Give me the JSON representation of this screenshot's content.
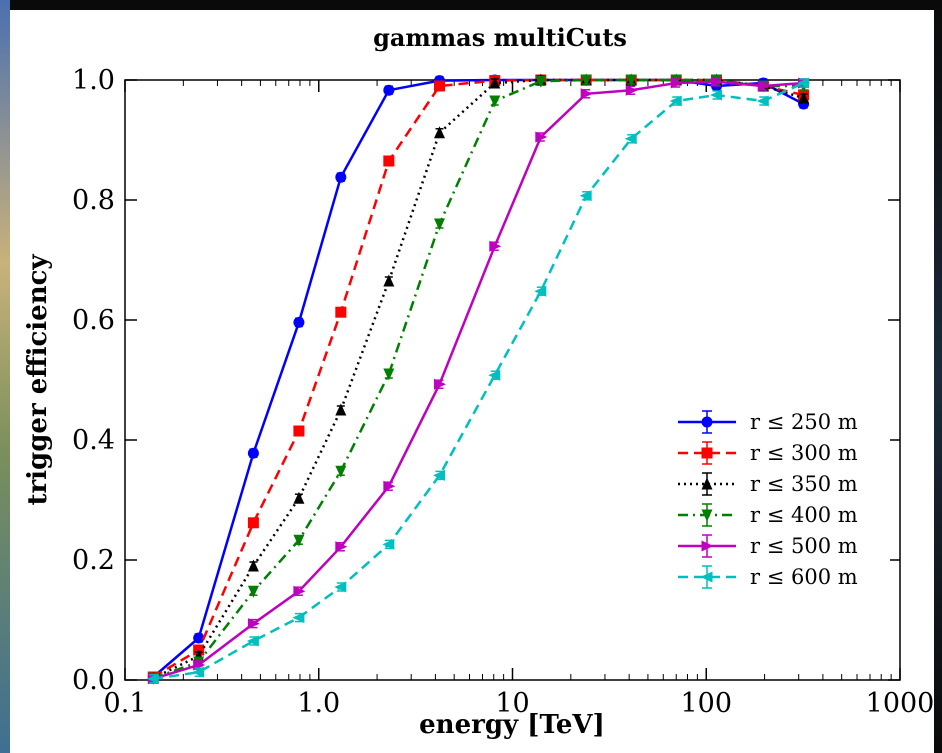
{
  "chart_data": {
    "type": "line",
    "title": "gammas multiCuts",
    "xlabel": "energy [TeV]",
    "ylabel": "trigger efficiency",
    "xscale": "log",
    "xlim": [
      0.1,
      1000
    ],
    "ylim": [
      0.0,
      1.0
    ],
    "x_tick_labels": [
      "0.1",
      "1.0",
      "10",
      "100",
      "1000"
    ],
    "y_tick_labels": [
      "0.0",
      "0.2",
      "0.4",
      "0.6",
      "0.8",
      "1.0"
    ],
    "y_ticks": [
      0.0,
      0.2,
      0.4,
      0.6,
      0.8,
      1.0
    ],
    "x_ticks": [
      0.1,
      1,
      10,
      100,
      1000
    ],
    "grid": false,
    "legend_position": "bottom-right",
    "series": [
      {
        "name": "r ≤ 250 m",
        "color": "#0000ff",
        "line": "solid",
        "marker": "circle",
        "x": [
          0.14,
          0.24,
          0.46,
          0.79,
          1.3,
          2.3,
          4.2,
          8.1,
          14,
          24,
          41,
          70,
          113,
          197,
          318
        ],
        "y": [
          0.005,
          0.07,
          0.378,
          0.596,
          0.838,
          0.983,
          0.999,
          1.0,
          1.0,
          1.0,
          1.0,
          1.0,
          0.99,
          0.995,
          0.96
        ]
      },
      {
        "name": "r ≤ 300 m",
        "color": "#ff0000",
        "line": "dashed",
        "marker": "square",
        "x": [
          0.14,
          0.24,
          0.46,
          0.79,
          1.3,
          2.3,
          4.2,
          8.1,
          14,
          24,
          41,
          70,
          113,
          197,
          318
        ],
        "y": [
          0.005,
          0.05,
          0.262,
          0.415,
          0.613,
          0.865,
          0.99,
          0.999,
          1.0,
          1.0,
          1.0,
          1.0,
          1.0,
          0.99,
          0.975
        ]
      },
      {
        "name": "r ≤ 350 m",
        "color": "#000000",
        "line": "dotted",
        "marker": "triangle-up",
        "x": [
          0.14,
          0.24,
          0.46,
          0.79,
          1.3,
          2.3,
          4.2,
          8.1,
          14,
          24,
          41,
          70,
          113,
          197,
          318
        ],
        "y": [
          0.003,
          0.04,
          0.19,
          0.303,
          0.45,
          0.665,
          0.912,
          0.995,
          1.0,
          1.0,
          1.0,
          1.0,
          1.0,
          0.99,
          0.97
        ]
      },
      {
        "name": "r ≤ 400 m",
        "color": "#007f00",
        "line": "dashdot",
        "marker": "triangle-down",
        "x": [
          0.14,
          0.24,
          0.46,
          0.79,
          1.3,
          2.3,
          4.2,
          8.1,
          14,
          24,
          41,
          70,
          113,
          197,
          318
        ],
        "y": [
          0.003,
          0.03,
          0.148,
          0.233,
          0.348,
          0.51,
          0.76,
          0.965,
          0.998,
          1.0,
          1.0,
          1.0,
          1.0,
          0.99,
          0.99
        ]
      },
      {
        "name": "r ≤ 500 m",
        "color": "#bf00bf",
        "line": "solid",
        "marker": "triangle-right",
        "x": [
          0.14,
          0.24,
          0.46,
          0.79,
          1.3,
          2.3,
          4.2,
          8.1,
          14,
          24,
          41,
          70,
          113,
          197,
          318
        ],
        "y": [
          0.002,
          0.025,
          0.094,
          0.148,
          0.222,
          0.323,
          0.493,
          0.723,
          0.905,
          0.977,
          0.983,
          0.995,
          0.997,
          0.99,
          0.995
        ]
      },
      {
        "name": "r ≤ 600 m",
        "color": "#00bfbf",
        "line": "dashed",
        "marker": "triangle-left",
        "x": [
          0.14,
          0.24,
          0.46,
          0.79,
          1.3,
          2.3,
          4.2,
          8.1,
          14,
          24,
          41,
          70,
          113,
          197,
          318
        ],
        "y": [
          0.002,
          0.013,
          0.065,
          0.104,
          0.155,
          0.226,
          0.341,
          0.508,
          0.648,
          0.807,
          0.902,
          0.965,
          0.975,
          0.965,
          0.995
        ]
      }
    ]
  },
  "colors": {
    "background": "#ffffff",
    "axes": "#000000"
  }
}
